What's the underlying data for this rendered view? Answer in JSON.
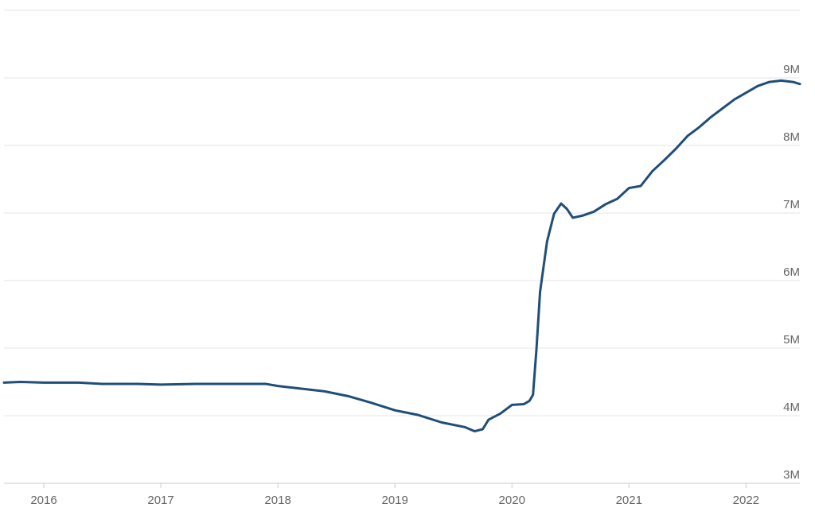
{
  "chart_data": {
    "type": "line",
    "x": [
      2015.66,
      2015.8,
      2016.0,
      2016.3,
      2016.5,
      2016.8,
      2017.0,
      2017.3,
      2017.6,
      2017.9,
      2018.0,
      2018.2,
      2018.4,
      2018.6,
      2018.8,
      2019.0,
      2019.2,
      2019.4,
      2019.6,
      2019.68,
      2019.75,
      2019.8,
      2019.9,
      2020.0,
      2020.1,
      2020.15,
      2020.18,
      2020.21,
      2020.24,
      2020.3,
      2020.36,
      2020.42,
      2020.47,
      2020.52,
      2020.6,
      2020.7,
      2020.8,
      2020.9,
      2021.0,
      2021.1,
      2021.2,
      2021.3,
      2021.4,
      2021.5,
      2021.6,
      2021.7,
      2021.8,
      2021.9,
      2022.0,
      2022.1,
      2022.2,
      2022.3,
      2022.4,
      2022.46
    ],
    "series": [
      {
        "color": "#1f4e79",
        "values": [
          4490000,
          4500000,
          4490000,
          4490000,
          4470000,
          4470000,
          4460000,
          4470000,
          4470000,
          4470000,
          4440000,
          4400000,
          4360000,
          4290000,
          4190000,
          4080000,
          4010000,
          3900000,
          3830000,
          3770000,
          3800000,
          3940000,
          4030000,
          4160000,
          4170000,
          4220000,
          4310000,
          5000000,
          5830000,
          6580000,
          6990000,
          7140000,
          7060000,
          6930000,
          6960000,
          7020000,
          7130000,
          7210000,
          7370000,
          7400000,
          7620000,
          7780000,
          7950000,
          8140000,
          8270000,
          8420000,
          8550000,
          8680000,
          8780000,
          8880000,
          8940000,
          8960000,
          8940000,
          8910000
        ]
      }
    ],
    "xlim": [
      2015.66,
      2022.46
    ],
    "xticks": [
      2016,
      2017,
      2018,
      2019,
      2020,
      2021,
      2022
    ],
    "ylim": [
      3000000,
      10000000
    ],
    "yticks": [
      {
        "value": 3000000,
        "label": "3M"
      },
      {
        "value": 4000000,
        "label": "4M"
      },
      {
        "value": 5000000,
        "label": "5M"
      },
      {
        "value": 6000000,
        "label": "6M"
      },
      {
        "value": 7000000,
        "label": "7M"
      },
      {
        "value": 8000000,
        "label": "8M"
      },
      {
        "value": 9000000,
        "label": "9M"
      }
    ],
    "grid": true
  }
}
